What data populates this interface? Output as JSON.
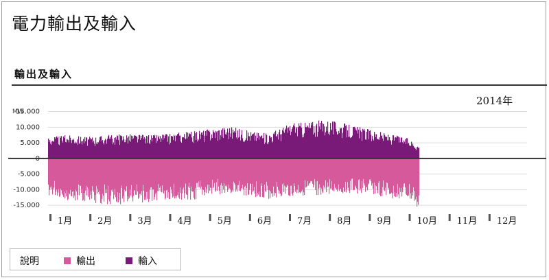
{
  "header": {
    "title": "電力輸出及輸入"
  },
  "section": {
    "title": "輸出及輸入"
  },
  "chart_data": {
    "type": "bar",
    "year_label": "2014年",
    "ylabel": "MW",
    "ylim": [
      -16500,
      16000
    ],
    "y_ticks": [
      15000,
      10000,
      5000,
      0,
      -5000,
      -10000,
      -15000
    ],
    "y_tick_labels": [
      "15.000",
      "10.000",
      "5.000",
      "0",
      "-5.000",
      "-10.000",
      "-15.000"
    ],
    "x_range": [
      0,
      12
    ],
    "categories": [
      "1月",
      "2月",
      "3月",
      "4月",
      "5月",
      "6月",
      "7月",
      "8月",
      "9月",
      "10月",
      "11月",
      "12月"
    ],
    "grid": true,
    "series": [
      {
        "name": "輸出",
        "color": "#d65a9b",
        "x": [
          0.0,
          0.5,
          1.0,
          1.5,
          2.0,
          2.5,
          3.0,
          3.5,
          4.0,
          4.5,
          5.0,
          5.5,
          6.0,
          6.5,
          7.0,
          7.5,
          8.0,
          8.5,
          9.0,
          9.3
        ],
        "values": [
          -12000,
          -13500,
          -14000,
          -15000,
          -14500,
          -14000,
          -13000,
          -13500,
          -12500,
          -11000,
          -12000,
          -13000,
          -12500,
          -12000,
          -11500,
          -11000,
          -11500,
          -12500,
          -13500,
          -16000
        ]
      },
      {
        "name": "輸入",
        "color": "#7a1a78",
        "x": [
          0.0,
          0.5,
          1.0,
          1.5,
          2.0,
          2.5,
          3.0,
          3.5,
          4.0,
          4.5,
          5.0,
          5.5,
          6.0,
          6.5,
          7.0,
          7.5,
          8.0,
          8.5,
          9.0,
          9.3
        ],
        "values": [
          7000,
          7500,
          7000,
          7500,
          8000,
          7500,
          8000,
          8500,
          9500,
          10500,
          9000,
          8000,
          11000,
          12000,
          12500,
          11000,
          9500,
          8000,
          6500,
          4000
        ]
      }
    ],
    "legend": {
      "title": "說明",
      "placement": "bottom-left"
    }
  }
}
